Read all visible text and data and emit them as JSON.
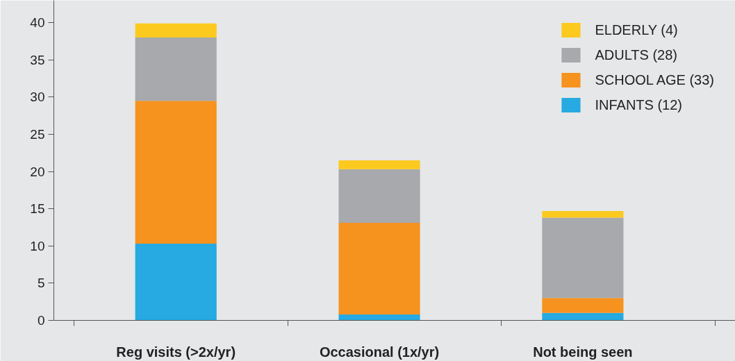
{
  "chart_data": {
    "type": "bar",
    "stacked": true,
    "categories": [
      "Reg visits (>2x/yr)",
      "Occasional (1x/yr)",
      "Not being seen"
    ],
    "series": [
      {
        "name": "INFANTS (12)",
        "color": "#27aae1",
        "values": [
          10.3,
          0.8,
          1.0
        ]
      },
      {
        "name": "SCHOOL AGE (33)",
        "color": "#f6921e",
        "values": [
          19.2,
          12.3,
          2.0
        ]
      },
      {
        "name": "ADULTS (28)",
        "color": "#a7a9ac",
        "values": [
          8.5,
          7.2,
          10.8
        ]
      },
      {
        "name": "ELDERLY (4)",
        "color": "#fcc91e",
        "values": [
          1.9,
          1.2,
          0.9
        ]
      }
    ],
    "ylim": [
      0,
      43
    ],
    "yticks": [
      0,
      5,
      10,
      15,
      20,
      25,
      30,
      35,
      40
    ],
    "legend": "top right"
  }
}
